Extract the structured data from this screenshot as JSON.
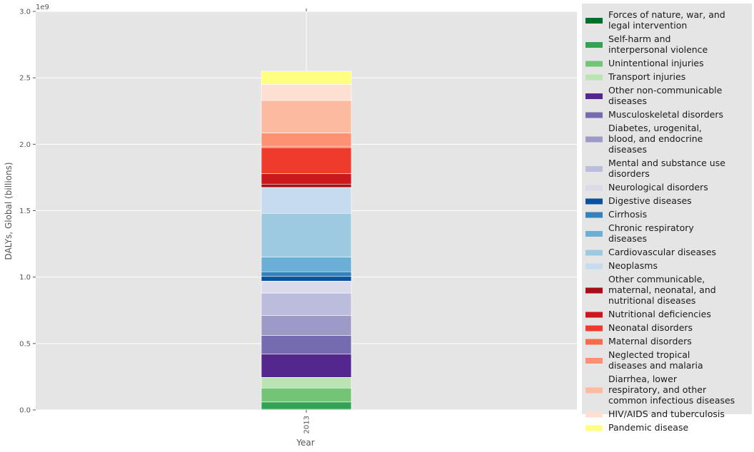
{
  "chart_data": {
    "type": "bar",
    "stacked": true,
    "categories": [
      "2013"
    ],
    "xlabel": "Year",
    "ylabel": "DALYs, Global (billions)",
    "ylim": [
      0,
      3000000000
    ],
    "y_offset_label": "1e9",
    "yticks": [
      0,
      500000000,
      1000000000,
      1500000000,
      2000000000,
      2500000000,
      3000000000
    ],
    "ytick_labels": [
      "0.0",
      "0.5",
      "1.0",
      "1.5",
      "2.0",
      "2.5",
      "3.0"
    ],
    "grid": true,
    "legend_position": "right",
    "series": [
      {
        "name": "Forces of nature, war, and legal intervention",
        "color": "#006d2c",
        "values": [
          5000000
        ]
      },
      {
        "name": "Self-harm and interpersonal violence",
        "color": "#31a354",
        "values": [
          55000000
        ]
      },
      {
        "name": "Unintentional injuries",
        "color": "#74c476",
        "values": [
          105000000
        ]
      },
      {
        "name": "Transport injuries",
        "color": "#bae4b3",
        "values": [
          80000000
        ]
      },
      {
        "name": "Other non-communicable diseases",
        "color": "#54278f",
        "values": [
          175000000
        ]
      },
      {
        "name": "Musculoskeletal disorders",
        "color": "#756bb1",
        "values": [
          140000000
        ]
      },
      {
        "name": "Diabetes, urogenital, blood, and endocrine diseases",
        "color": "#9e9ac8",
        "values": [
          150000000
        ]
      },
      {
        "name": "Mental and substance use disorders",
        "color": "#bcbddc",
        "values": [
          170000000
        ]
      },
      {
        "name": "Neurological disorders",
        "color": "#dadaeb",
        "values": [
          90000000
        ]
      },
      {
        "name": "Digestive diseases",
        "color": "#08519c",
        "values": [
          35000000
        ]
      },
      {
        "name": "Cirrhosis",
        "color": "#3182bd",
        "values": [
          35000000
        ]
      },
      {
        "name": "Chronic respiratory diseases",
        "color": "#6baed6",
        "values": [
          110000000
        ]
      },
      {
        "name": "Cardiovascular diseases",
        "color": "#9ecae1",
        "values": [
          330000000
        ]
      },
      {
        "name": "Neoplasms",
        "color": "#c6dbef",
        "values": [
          195000000
        ]
      },
      {
        "name": "Other communicable, maternal, neonatal, and nutritional diseases",
        "color": "#a50f15",
        "values": [
          25000000
        ]
      },
      {
        "name": "Nutritional deficiencies",
        "color": "#cb181d",
        "values": [
          80000000
        ]
      },
      {
        "name": "Neonatal disorders",
        "color": "#ef3b2c",
        "values": [
          195000000
        ]
      },
      {
        "name": "Maternal disorders",
        "color": "#fb6a4a",
        "values": [
          10000000
        ]
      },
      {
        "name": "Neglected tropical diseases and malaria",
        "color": "#fc9272",
        "values": [
          100000000
        ]
      },
      {
        "name": "Diarrhea, lower respiratory, and other common infectious diseases",
        "color": "#fcbba1",
        "values": [
          245000000
        ]
      },
      {
        "name": "HIV/AIDS and tuberculosis",
        "color": "#fee0d2",
        "values": [
          120000000
        ]
      },
      {
        "name": "Pandemic disease",
        "color": "#ffff80",
        "values": [
          100000000
        ]
      }
    ]
  }
}
